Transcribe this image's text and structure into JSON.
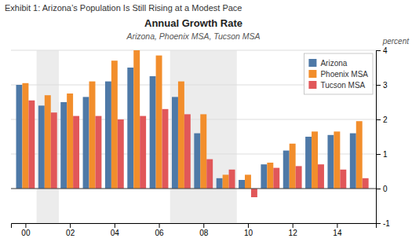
{
  "chart_data": {
    "type": "bar",
    "title": "Annual Growth Rate",
    "subtitle": "Arizona, Phoenix MSA, Tucson MSA",
    "annotations": [
      "Exhibit 1: Arizona’s Population Is Still Rising at a Modest Pace"
    ],
    "ylabel": "percent",
    "x": [
      2000,
      2001,
      2002,
      2003,
      2004,
      2005,
      2006,
      2007,
      2008,
      2009,
      2010,
      2011,
      2012,
      2013,
      2014,
      2015
    ],
    "xlim": [
      1999.35,
      2015.75
    ],
    "xticks": [
      {
        "value": 2000,
        "label": "00"
      },
      {
        "value": 2002,
        "label": "02"
      },
      {
        "value": 2004,
        "label": "04"
      },
      {
        "value": 2006,
        "label": "06"
      },
      {
        "value": 2008,
        "label": "08"
      },
      {
        "value": 2010,
        "label": "10"
      },
      {
        "value": 2012,
        "label": "12"
      },
      {
        "value": 2014,
        "label": "14"
      }
    ],
    "ylim": [
      -1,
      4
    ],
    "yticks": [
      -1,
      0,
      1,
      2,
      3,
      4
    ],
    "series": [
      {
        "name": "Arizona",
        "values": [
          3.0,
          2.4,
          2.5,
          2.65,
          3.1,
          3.5,
          3.25,
          2.65,
          1.6,
          0.3,
          0.25,
          0.7,
          1.1,
          1.5,
          1.55,
          1.6
        ]
      },
      {
        "name": "Phoenix MSA",
        "values": [
          3.05,
          2.7,
          2.75,
          3.1,
          3.7,
          4.0,
          3.85,
          3.1,
          2.15,
          0.4,
          0.4,
          0.75,
          1.3,
          1.65,
          1.65,
          1.95
        ]
      },
      {
        "name": "Tucson MSA",
        "values": [
          2.55,
          2.2,
          2.1,
          2.1,
          2.0,
          2.1,
          2.3,
          2.15,
          0.85,
          0.55,
          -0.25,
          0.6,
          0.65,
          0.7,
          0.55,
          0.3
        ]
      }
    ],
    "recession_bands": [
      [
        2001,
        2001
      ],
      [
        2007,
        2009
      ]
    ],
    "grid": true,
    "legend": "upper right"
  }
}
